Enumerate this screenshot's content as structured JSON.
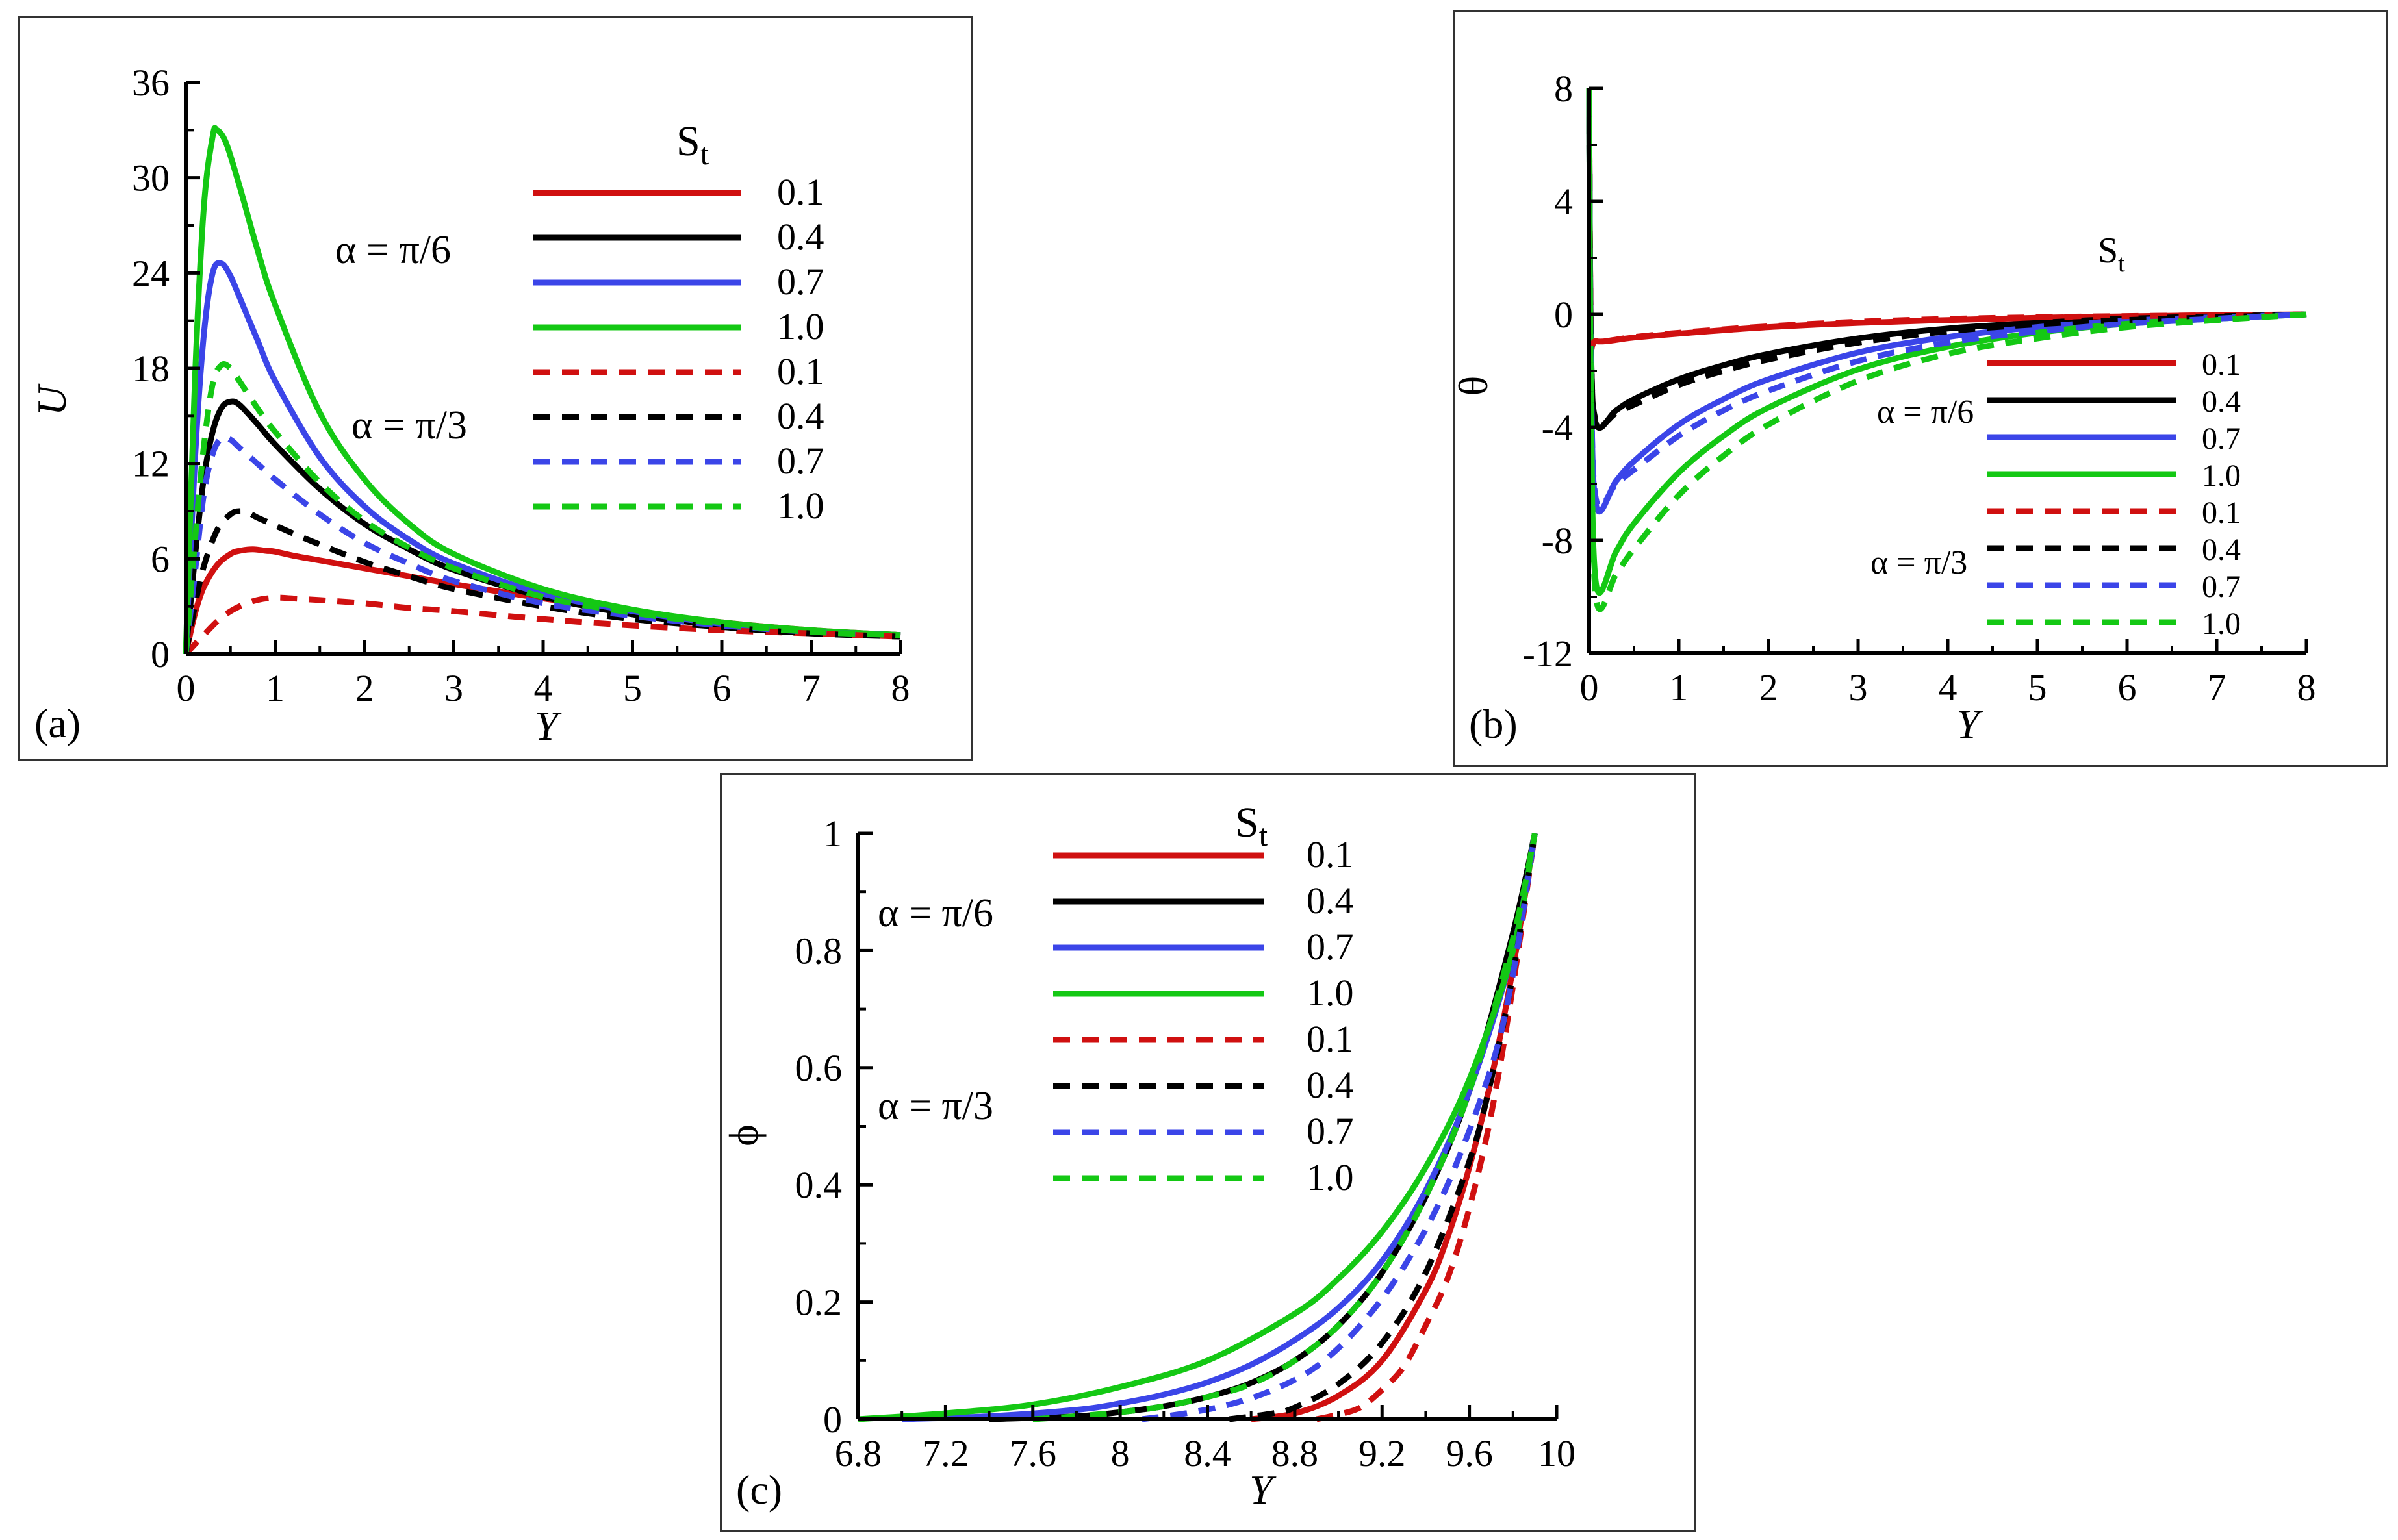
{
  "colors": {
    "red": "#d01010",
    "black": "#000000",
    "blue": "#3b45e8",
    "green": "#14c814"
  },
  "legend": {
    "st_main": "S",
    "st_sub": "t",
    "group1": "α = π/6",
    "group2": "α = π/3"
  },
  "chart_data": [
    {
      "id": "a",
      "type": "line",
      "panel_label": "(a)",
      "xlabel": "Y",
      "ylabel": "U",
      "xlim": [
        0,
        8
      ],
      "ylim": [
        0,
        36
      ],
      "xticks": [
        "0",
        "1",
        "2",
        "3",
        "4",
        "5",
        "6",
        "7",
        "8"
      ],
      "yticks": [
        "0",
        "6",
        "12",
        "18",
        "24",
        "30",
        "36"
      ],
      "legend_values": [
        "0.1",
        "0.4",
        "0.7",
        "1.0",
        "0.1",
        "0.4",
        "0.7",
        "1.0"
      ],
      "series": [
        {
          "name": "0.1, α = π/6",
          "color": "red",
          "style": "solid",
          "x": [
            0,
            0.1,
            0.2,
            0.35,
            0.5,
            0.6,
            0.75,
            0.9,
            1.0,
            1.2,
            1.5,
            2,
            2.5,
            3,
            4,
            5,
            6,
            7,
            8
          ],
          "y": [
            0,
            2.5,
            4.2,
            5.6,
            6.3,
            6.5,
            6.6,
            6.5,
            6.45,
            6.2,
            5.9,
            5.4,
            4.9,
            4.4,
            3.5,
            2.7,
            2.0,
            1.5,
            1.2
          ]
        },
        {
          "name": "0.4, α = π/6",
          "color": "black",
          "style": "solid",
          "x": [
            0,
            0.1,
            0.2,
            0.3,
            0.4,
            0.5,
            0.6,
            0.8,
            1.0,
            1.5,
            2,
            2.5,
            3,
            4,
            5,
            6,
            7,
            8
          ],
          "y": [
            0,
            6,
            11,
            14,
            15.5,
            15.9,
            15.7,
            14.5,
            13.2,
            10.4,
            8.2,
            6.6,
            5.3,
            3.6,
            2.5,
            1.8,
            1.4,
            1.2
          ]
        },
        {
          "name": "0.7, α = π/6",
          "color": "blue",
          "style": "solid",
          "x": [
            0,
            0.1,
            0.2,
            0.3,
            0.4,
            0.5,
            0.6,
            0.8,
            1.0,
            1.5,
            2,
            2.5,
            3,
            4,
            5,
            6,
            7,
            8
          ],
          "y": [
            0,
            12,
            20,
            24,
            24.6,
            23.8,
            22.5,
            19.8,
            17.2,
            12.4,
            9.3,
            7.2,
            5.7,
            3.8,
            2.7,
            1.9,
            1.4,
            1.2
          ]
        },
        {
          "name": "1.0, α = π/6",
          "color": "green",
          "style": "solid",
          "x": [
            0,
            0.1,
            0.2,
            0.3,
            0.35,
            0.45,
            0.6,
            0.8,
            1.0,
            1.5,
            2,
            2.5,
            3,
            4,
            5,
            6,
            7,
            8
          ],
          "y": [
            0,
            17,
            28,
            32.6,
            33,
            32.2,
            29.5,
            25.5,
            22,
            15.2,
            11,
            8.2,
            6.3,
            4.1,
            2.8,
            2.0,
            1.5,
            1.2
          ]
        },
        {
          "name": "0.1, α = π/3",
          "color": "red",
          "style": "dashed",
          "x": [
            0,
            0.2,
            0.4,
            0.6,
            0.8,
            1.0,
            1.2,
            1.5,
            2,
            2.5,
            3,
            4,
            5,
            6,
            7,
            8
          ],
          "y": [
            0,
            1.2,
            2.3,
            3.0,
            3.4,
            3.55,
            3.5,
            3.4,
            3.2,
            2.9,
            2.7,
            2.2,
            1.8,
            1.5,
            1.3,
            1.1
          ]
        },
        {
          "name": "0.4, α = π/3",
          "color": "black",
          "style": "dashed",
          "x": [
            0,
            0.1,
            0.2,
            0.35,
            0.5,
            0.6,
            0.7,
            0.8,
            1.0,
            1.2,
            1.5,
            2,
            2.5,
            3,
            4,
            5,
            6,
            7,
            8
          ],
          "y": [
            0,
            3,
            5.5,
            7.8,
            8.8,
            9.0,
            8.9,
            8.6,
            8.1,
            7.6,
            6.9,
            5.8,
            4.9,
            4.1,
            3.0,
            2.2,
            1.7,
            1.3,
            1.1
          ]
        },
        {
          "name": "0.7, α = π/3",
          "color": "blue",
          "style": "dashed",
          "x": [
            0,
            0.1,
            0.2,
            0.3,
            0.4,
            0.5,
            0.6,
            0.8,
            1.0,
            1.5,
            2,
            2.5,
            3,
            4,
            5,
            6,
            7,
            8
          ],
          "y": [
            0,
            5,
            10,
            12.6,
            13.6,
            13.5,
            13.0,
            12.0,
            11.0,
            8.8,
            7.0,
            5.7,
            4.6,
            3.2,
            2.4,
            1.8,
            1.4,
            1.2
          ]
        },
        {
          "name": "1.0, α = π/3",
          "color": "green",
          "style": "dashed",
          "x": [
            0,
            0.1,
            0.2,
            0.3,
            0.4,
            0.5,
            0.6,
            0.8,
            1.0,
            1.5,
            2,
            2.5,
            3,
            4,
            5,
            6,
            7,
            8
          ],
          "y": [
            0,
            7,
            13,
            17,
            18.2,
            18.0,
            17.2,
            15.5,
            14.0,
            10.8,
            8.4,
            6.7,
            5.4,
            3.6,
            2.6,
            1.9,
            1.4,
            1.2
          ]
        }
      ]
    },
    {
      "id": "b",
      "type": "line",
      "panel_label": "(b)",
      "xlabel": "Y",
      "ylabel": "θ",
      "xlim": [
        0,
        8
      ],
      "ylim": [
        -12,
        8
      ],
      "xticks": [
        "0",
        "1",
        "2",
        "3",
        "4",
        "5",
        "6",
        "7",
        "8"
      ],
      "yticks": [
        "-12",
        "-8",
        "-4",
        "0",
        "4",
        "8"
      ],
      "legend_values": [
        "0.1",
        "0.4",
        "0.7",
        "1.0",
        "0.1",
        "0.4",
        "0.7",
        "1.0"
      ],
      "series": [
        {
          "name": "0.1, α = π/6",
          "color": "red",
          "style": "solid",
          "x": [
            0,
            0.02,
            0.08,
            0.5,
            1,
            2,
            3,
            4,
            5,
            6,
            7,
            8
          ],
          "y": [
            8,
            -0.5,
            -0.95,
            -0.82,
            -0.68,
            -0.45,
            -0.3,
            -0.2,
            -0.12,
            -0.07,
            -0.03,
            0
          ]
        },
        {
          "name": "0.4, α = π/6",
          "color": "black",
          "style": "solid",
          "x": [
            0,
            0.02,
            0.08,
            0.3,
            0.5,
            1,
            1.5,
            2,
            3,
            4,
            5,
            6,
            7,
            8
          ],
          "y": [
            8,
            -1,
            -3.9,
            -3.4,
            -3.0,
            -2.3,
            -1.8,
            -1.4,
            -0.85,
            -0.5,
            -0.3,
            -0.15,
            -0.07,
            0
          ]
        },
        {
          "name": "0.7, α = π/6",
          "color": "blue",
          "style": "solid",
          "x": [
            0,
            0.02,
            0.08,
            0.3,
            0.5,
            1,
            1.5,
            2,
            3,
            4,
            5,
            6,
            7,
            8
          ],
          "y": [
            8,
            -2,
            -6.8,
            -5.9,
            -5.2,
            -3.9,
            -3.0,
            -2.3,
            -1.35,
            -0.8,
            -0.45,
            -0.22,
            -0.1,
            0
          ]
        },
        {
          "name": "1.0, α = π/6",
          "color": "green",
          "style": "solid",
          "x": [
            0,
            0.02,
            0.08,
            0.3,
            0.5,
            1,
            1.5,
            2,
            3,
            4,
            5,
            6,
            7,
            8
          ],
          "y": [
            8,
            -3,
            -9.6,
            -8.4,
            -7.4,
            -5.6,
            -4.3,
            -3.3,
            -1.95,
            -1.15,
            -0.65,
            -0.33,
            -0.15,
            0
          ]
        },
        {
          "name": "0.1, α = π/3",
          "color": "red",
          "style": "dashed",
          "x": [
            0,
            0.02,
            0.08,
            0.5,
            1,
            2,
            3,
            4,
            5,
            6,
            7,
            8
          ],
          "y": [
            8,
            -0.5,
            -0.95,
            -0.8,
            -0.65,
            -0.42,
            -0.26,
            -0.16,
            -0.1,
            -0.06,
            -0.03,
            0
          ]
        },
        {
          "name": "0.4, α = π/3",
          "color": "black",
          "style": "dashed",
          "x": [
            0,
            0.02,
            0.08,
            0.3,
            0.5,
            1,
            1.5,
            2,
            3,
            4,
            5,
            6,
            7,
            8
          ],
          "y": [
            8,
            -1,
            -3.8,
            -3.5,
            -3.2,
            -2.5,
            -2.0,
            -1.6,
            -1.0,
            -0.6,
            -0.35,
            -0.2,
            -0.1,
            0
          ]
        },
        {
          "name": "0.7, α = π/3",
          "color": "blue",
          "style": "dashed",
          "x": [
            0,
            0.02,
            0.08,
            0.3,
            0.5,
            1,
            1.5,
            2,
            3,
            4,
            5,
            6,
            7,
            8
          ],
          "y": [
            8,
            -2,
            -6.6,
            -6.0,
            -5.5,
            -4.3,
            -3.4,
            -2.7,
            -1.65,
            -1.0,
            -0.6,
            -0.33,
            -0.15,
            0
          ]
        },
        {
          "name": "1.0, α = π/3",
          "color": "green",
          "style": "dashed",
          "x": [
            0,
            0.02,
            0.08,
            0.3,
            0.5,
            1,
            1.5,
            2,
            3,
            4,
            5,
            6,
            7,
            8
          ],
          "y": [
            8,
            -3,
            -10.1,
            -9.2,
            -8.3,
            -6.4,
            -5.0,
            -3.9,
            -2.35,
            -1.4,
            -0.85,
            -0.45,
            -0.2,
            0
          ]
        }
      ]
    },
    {
      "id": "c",
      "type": "line",
      "panel_label": "(c)",
      "xlabel": "Y",
      "ylabel": "ϕ",
      "xlim": [
        6.8,
        10
      ],
      "ylim": [
        0,
        1
      ],
      "xticks": [
        "6.8",
        "7.2",
        "7.6",
        "8",
        "8.4",
        "8.8",
        "9.2",
        "9.6",
        "10"
      ],
      "yticks": [
        "0",
        "0.2",
        "0.4",
        "0.6",
        "0.8",
        "1"
      ],
      "legend_values": [
        "0.1",
        "0.4",
        "0.7",
        "1.0",
        "0.1",
        "0.4",
        "0.7",
        "1.0"
      ],
      "series": [
        {
          "name": "0.1, α = π/6",
          "color": "red",
          "style": "solid",
          "x": [
            8.6,
            8.8,
            9.0,
            9.2,
            9.4,
            9.5,
            9.6,
            9.7,
            9.8,
            9.9
          ],
          "y": [
            0,
            0.01,
            0.04,
            0.1,
            0.22,
            0.31,
            0.43,
            0.58,
            0.77,
            1.0
          ]
        },
        {
          "name": "0.4, α = π/6",
          "color": "black",
          "style": "solid",
          "x": [
            7.4,
            7.8,
            8.0,
            8.2,
            8.4,
            8.6,
            8.8,
            9.0,
            9.2,
            9.4,
            9.6,
            9.8,
            9.9
          ],
          "y": [
            0,
            0.005,
            0.012,
            0.022,
            0.038,
            0.062,
            0.1,
            0.16,
            0.25,
            0.38,
            0.56,
            0.83,
            1.0
          ]
        },
        {
          "name": "0.7, α = π/6",
          "color": "blue",
          "style": "solid",
          "x": [
            7.0,
            7.4,
            7.8,
            8.0,
            8.2,
            8.4,
            8.6,
            8.8,
            9.0,
            9.2,
            9.4,
            9.6,
            9.8,
            9.9
          ],
          "y": [
            0,
            0.005,
            0.016,
            0.027,
            0.042,
            0.063,
            0.093,
            0.135,
            0.19,
            0.27,
            0.39,
            0.56,
            0.8,
            1.0
          ]
        },
        {
          "name": "1.0, α = π/6",
          "color": "green",
          "style": "solid",
          "x": [
            6.8,
            7.2,
            7.6,
            8.0,
            8.4,
            8.8,
            9.0,
            9.2,
            9.4,
            9.6,
            9.8,
            9.9
          ],
          "y": [
            0,
            0.01,
            0.025,
            0.055,
            0.1,
            0.18,
            0.24,
            0.32,
            0.43,
            0.58,
            0.8,
            1.0
          ]
        },
        {
          "name": "0.1, α = π/3",
          "color": "red",
          "style": "dashed",
          "x": [
            8.9,
            9.0,
            9.1,
            9.2,
            9.3,
            9.4,
            9.5,
            9.6,
            9.7,
            9.8,
            9.9
          ],
          "y": [
            0,
            0.008,
            0.02,
            0.05,
            0.09,
            0.16,
            0.24,
            0.36,
            0.52,
            0.74,
            1.0
          ]
        },
        {
          "name": "0.4, α = π/3",
          "color": "black",
          "style": "dashed",
          "x": [
            8.5,
            8.7,
            8.8,
            9.0,
            9.2,
            9.4,
            9.6,
            9.7,
            9.8,
            9.9
          ],
          "y": [
            0,
            0.01,
            0.02,
            0.06,
            0.13,
            0.25,
            0.44,
            0.58,
            0.76,
            1.0
          ]
        },
        {
          "name": "0.7, α = π/3",
          "color": "blue",
          "style": "dashed",
          "x": [
            8.1,
            8.3,
            8.5,
            8.7,
            8.9,
            9.1,
            9.3,
            9.5,
            9.7,
            9.8,
            9.9
          ],
          "y": [
            0,
            0.01,
            0.025,
            0.05,
            0.09,
            0.16,
            0.26,
            0.4,
            0.6,
            0.76,
            1.0
          ]
        },
        {
          "name": "1.0, α = π/3",
          "color": "green",
          "style": "dashed",
          "x": [
            7.6,
            7.8,
            8.0,
            8.2,
            8.4,
            8.6,
            8.8,
            9.0,
            9.2,
            9.4,
            9.6,
            9.8,
            9.9
          ],
          "y": [
            0,
            0.005,
            0.012,
            0.022,
            0.038,
            0.06,
            0.1,
            0.16,
            0.25,
            0.38,
            0.56,
            0.82,
            1.0
          ]
        }
      ]
    }
  ]
}
